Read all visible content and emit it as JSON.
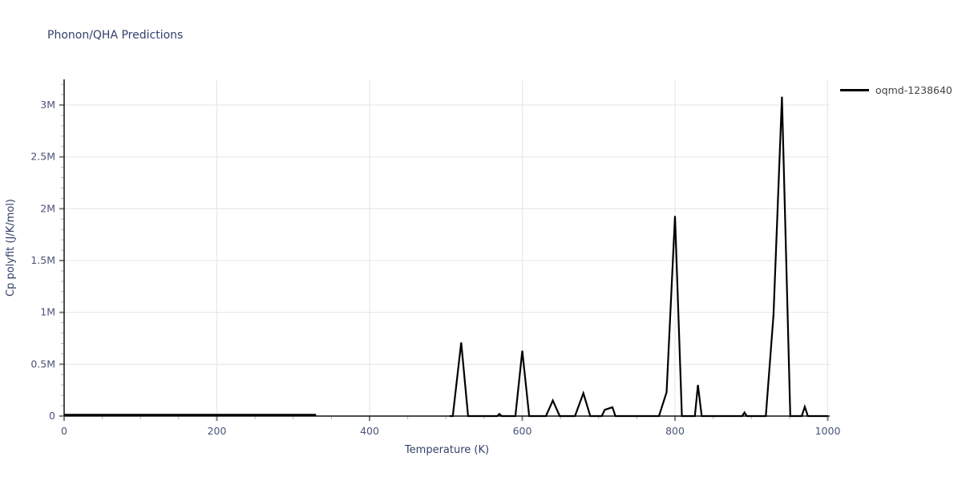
{
  "title": "Phonon/QHA Predictions",
  "legend": {
    "label": "oqmd-1238640",
    "line_color": "#000000"
  },
  "colors": {
    "title_text": "#34406b",
    "axis_label_text": "#34406b",
    "tick_label_text": "#4a547a",
    "legend_text": "#444444",
    "grid": "#e5e5e5",
    "axis_line": "#111111",
    "major_tick": "#808080",
    "minor_tick": "#b3b3b3",
    "series_line": "#000000",
    "background": "#ffffff"
  },
  "chart_data": {
    "type": "line",
    "title": "Phonon/QHA Predictions",
    "xlabel": "Temperature (K)",
    "ylabel": "Cp polyfit (J/K/mol)",
    "xlim": [
      0,
      1003
    ],
    "ylim": [
      0,
      3240000
    ],
    "grid": true,
    "legend_position": "top-right-outside",
    "x_ticks": [
      {
        "value": 0,
        "label": "0"
      },
      {
        "value": 200,
        "label": "200"
      },
      {
        "value": 400,
        "label": "400"
      },
      {
        "value": 600,
        "label": "600"
      },
      {
        "value": 800,
        "label": "800"
      },
      {
        "value": 1000,
        "label": "1000"
      }
    ],
    "y_ticks": [
      {
        "value": 0,
        "label": "0"
      },
      {
        "value": 500000,
        "label": "0.5M"
      },
      {
        "value": 1000000,
        "label": "1M"
      },
      {
        "value": 1500000,
        "label": "1.5M"
      },
      {
        "value": 2000000,
        "label": "2M"
      },
      {
        "value": 2500000,
        "label": "2.5M"
      },
      {
        "value": 3000000,
        "label": "3M"
      }
    ],
    "x_minor_step": 50,
    "y_minor_step": 100000,
    "series": [
      {
        "name": "oqmd-1238640",
        "color": "#000000",
        "segments": [
          [
            [
              0,
              12000
            ],
            [
              60,
              12000
            ],
            [
              120,
              12000
            ],
            [
              180,
              12000
            ],
            [
              240,
              12000
            ],
            [
              300,
              12000
            ],
            [
              330,
              12000
            ]
          ],
          [
            [
              505,
              0
            ],
            [
              509,
              0
            ],
            [
              520,
              710000
            ],
            [
              529,
              0
            ],
            [
              540,
              0
            ],
            [
              552,
              0
            ],
            [
              564,
              0
            ],
            [
              567,
              0
            ],
            [
              570,
              20000
            ],
            [
              573,
              0
            ],
            [
              580,
              0
            ],
            [
              591,
              0
            ],
            [
              600,
              630000
            ],
            [
              609,
              0
            ],
            [
              620,
              0
            ],
            [
              631,
              0
            ],
            [
              640,
              150000
            ],
            [
              649,
              0
            ],
            [
              658,
              0
            ],
            [
              669,
              0
            ],
            [
              680,
              220000
            ],
            [
              689,
              0
            ],
            [
              697,
              0
            ],
            [
              704,
              0
            ],
            [
              708,
              60000
            ],
            [
              718,
              85000
            ],
            [
              722,
              0
            ],
            [
              730,
              0
            ],
            [
              742,
              0
            ],
            [
              755,
              0
            ],
            [
              768,
              0
            ],
            [
              779,
              0
            ],
            [
              789,
              230000
            ],
            [
              800,
              1930000
            ],
            [
              809,
              0
            ],
            [
              816,
              0
            ],
            [
              826,
              0
            ],
            [
              830,
              300000
            ],
            [
              835,
              0
            ],
            [
              843,
              0
            ],
            [
              856,
              0
            ],
            [
              869,
              0
            ],
            [
              882,
              0
            ],
            [
              888,
              0
            ],
            [
              891,
              35000
            ],
            [
              894,
              0
            ],
            [
              903,
              0
            ],
            [
              912,
              0
            ],
            [
              919,
              0
            ],
            [
              929,
              980000
            ],
            [
              940,
              3080000
            ],
            [
              951,
              0
            ],
            [
              958,
              0
            ],
            [
              966,
              0
            ],
            [
              970,
              90000
            ],
            [
              974,
              0
            ],
            [
              983,
              0
            ],
            [
              1000,
              0
            ]
          ]
        ]
      }
    ]
  }
}
